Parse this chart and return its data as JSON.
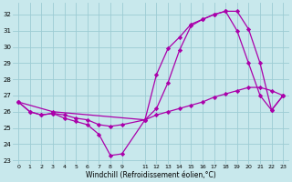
{
  "xlabel": "Windchill (Refroidissement éolien,°C)",
  "ylabel": "",
  "xlim": [
    -0.5,
    23.5
  ],
  "ylim": [
    22.8,
    32.7
  ],
  "background_color": "#c8e8ec",
  "grid_color": "#9cccd4",
  "line_color": "#aa00aa",
  "line1_x": [
    0,
    1,
    2,
    3,
    4,
    5,
    6,
    7,
    8,
    9,
    11,
    12,
    13,
    14,
    15,
    16,
    17,
    18,
    19,
    20,
    21,
    22,
    23
  ],
  "line1_y": [
    26.6,
    26.0,
    25.8,
    25.9,
    25.8,
    25.6,
    25.5,
    25.2,
    25.1,
    25.2,
    25.5,
    25.8,
    26.0,
    26.2,
    26.4,
    26.6,
    26.9,
    27.1,
    27.3,
    27.5,
    27.5,
    27.3,
    27.0
  ],
  "line2_x": [
    0,
    1,
    2,
    3,
    4,
    5,
    6,
    7,
    8,
    9,
    11,
    12,
    13,
    14,
    15,
    16,
    17,
    18,
    19,
    20,
    21,
    22,
    23
  ],
  "line2_y": [
    26.6,
    26.0,
    25.8,
    25.9,
    25.6,
    25.4,
    25.2,
    24.6,
    23.3,
    23.4,
    25.5,
    28.3,
    29.9,
    30.6,
    31.4,
    31.7,
    32.0,
    32.2,
    31.0,
    29.0,
    27.0,
    26.1,
    27.0
  ],
  "line3_x": [
    0,
    3,
    11,
    12,
    13,
    14,
    15,
    16,
    17,
    18,
    19,
    20,
    21,
    22,
    23
  ],
  "line3_y": [
    26.6,
    26.0,
    25.5,
    26.2,
    27.8,
    29.8,
    31.3,
    31.7,
    32.0,
    32.2,
    32.2,
    31.1,
    29.0,
    26.1,
    27.0
  ],
  "xticks": [
    0,
    1,
    2,
    3,
    4,
    5,
    6,
    7,
    8,
    9,
    11,
    12,
    13,
    14,
    15,
    16,
    17,
    18,
    19,
    20,
    21,
    22,
    23
  ],
  "yticks": [
    23,
    24,
    25,
    26,
    27,
    28,
    29,
    30,
    31,
    32
  ]
}
